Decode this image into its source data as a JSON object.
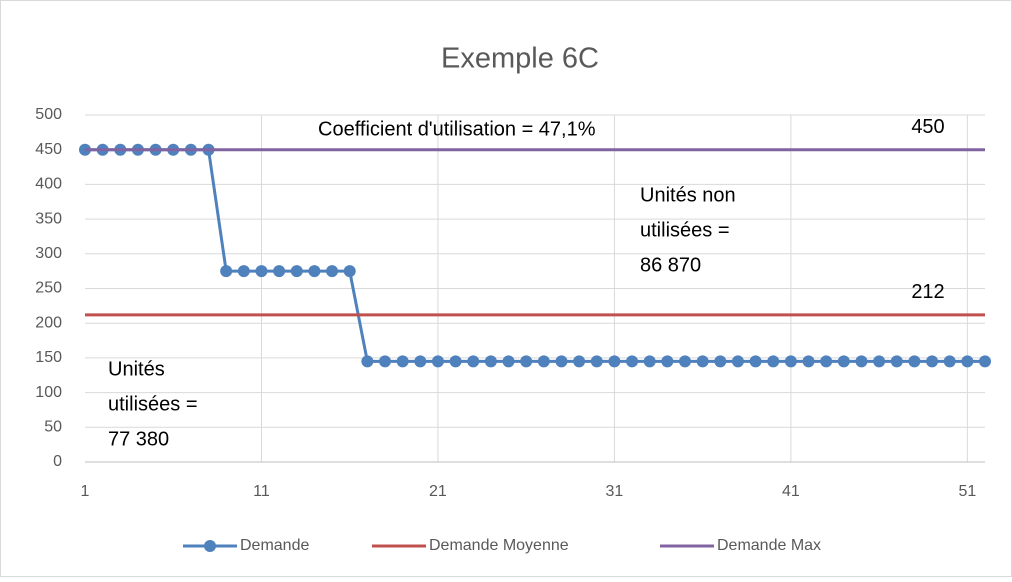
{
  "chart_data": {
    "type": "line",
    "title": "Exemple 6C",
    "x": [
      1,
      2,
      3,
      4,
      5,
      6,
      7,
      8,
      9,
      10,
      11,
      12,
      13,
      14,
      15,
      16,
      17,
      18,
      19,
      20,
      21,
      22,
      23,
      24,
      25,
      26,
      27,
      28,
      29,
      30,
      31,
      32,
      33,
      34,
      35,
      36,
      37,
      38,
      39,
      40,
      41,
      42,
      43,
      44,
      45,
      46,
      47,
      48,
      49,
      50,
      51,
      52
    ],
    "series": [
      {
        "name": "Demande",
        "color": "#4f81bd",
        "markers": true,
        "values": [
          450,
          450,
          450,
          450,
          450,
          450,
          450,
          450,
          275,
          275,
          275,
          275,
          275,
          275,
          275,
          275,
          145,
          145,
          145,
          145,
          145,
          145,
          145,
          145,
          145,
          145,
          145,
          145,
          145,
          145,
          145,
          145,
          145,
          145,
          145,
          145,
          145,
          145,
          145,
          145,
          145,
          145,
          145,
          145,
          145,
          145,
          145,
          145,
          145,
          145,
          145,
          145
        ]
      },
      {
        "name": "Demande Moyenne",
        "color": "#c0504d",
        "markers": false,
        "last_label": true,
        "values": [
          212,
          212,
          212,
          212,
          212,
          212,
          212,
          212,
          212,
          212,
          212,
          212,
          212,
          212,
          212,
          212,
          212,
          212,
          212,
          212,
          212,
          212,
          212,
          212,
          212,
          212,
          212,
          212,
          212,
          212,
          212,
          212,
          212,
          212,
          212,
          212,
          212,
          212,
          212,
          212,
          212,
          212,
          212,
          212,
          212,
          212,
          212,
          212,
          212,
          212,
          212,
          212
        ]
      },
      {
        "name": "Demande Max",
        "color": "#8064a2",
        "markers": false,
        "last_label": true,
        "values": [
          450,
          450,
          450,
          450,
          450,
          450,
          450,
          450,
          450,
          450,
          450,
          450,
          450,
          450,
          450,
          450,
          450,
          450,
          450,
          450,
          450,
          450,
          450,
          450,
          450,
          450,
          450,
          450,
          450,
          450,
          450,
          450,
          450,
          450,
          450,
          450,
          450,
          450,
          450,
          450,
          450,
          450,
          450,
          450,
          450,
          450,
          450,
          450,
          450,
          450,
          450,
          450
        ]
      }
    ],
    "xlim": [
      1,
      52
    ],
    "xticks": [
      1,
      11,
      21,
      31,
      41,
      51
    ],
    "ylim": [
      0,
      500
    ],
    "yticks": [
      0,
      50,
      100,
      150,
      200,
      250,
      300,
      350,
      400,
      450,
      500
    ],
    "grid": true,
    "legend": "bottom",
    "annotations": [
      {
        "lines": [
          "Coefficient d'utilisation = 47,1%"
        ]
      },
      {
        "lines": [
          "Unités non",
          "utilisées =",
          "86 870"
        ]
      },
      {
        "lines": [
          "Unités",
          "utilisées =",
          "77 380"
        ]
      }
    ]
  }
}
